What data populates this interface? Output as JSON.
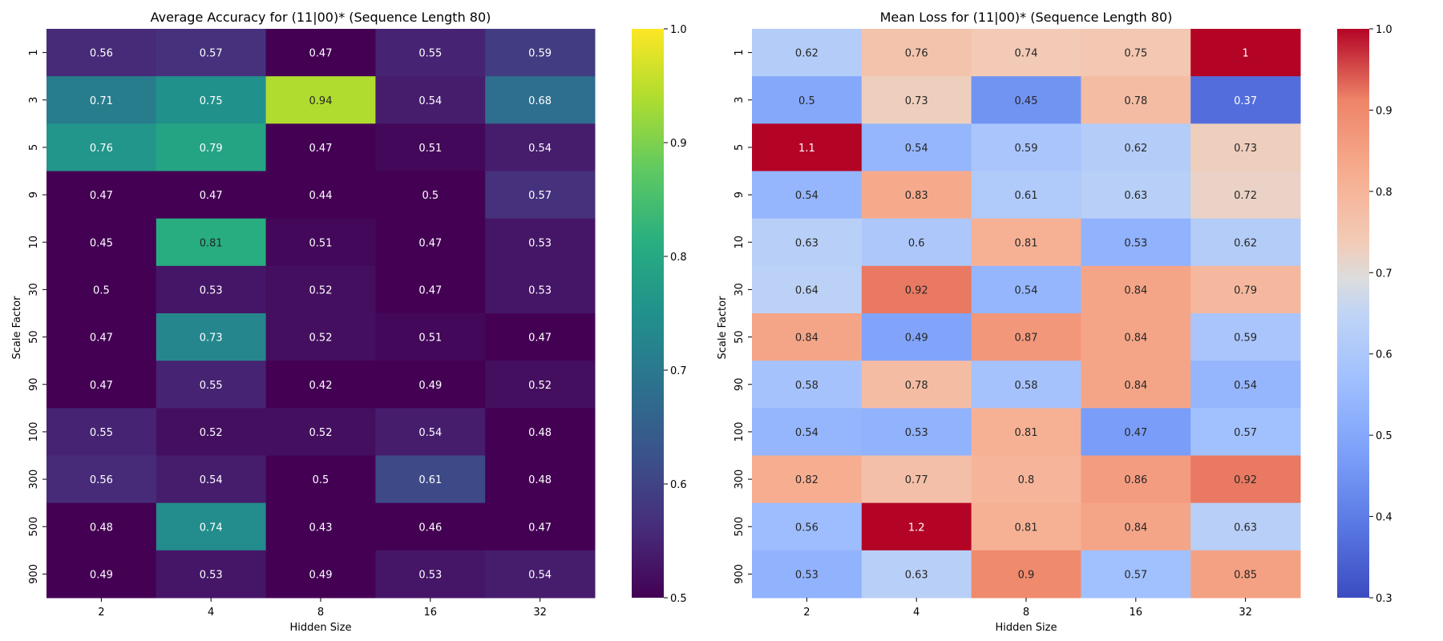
{
  "chart_data": [
    {
      "type": "heatmap",
      "title": "Average Accuracy for (11|00)* (Sequence Length 80)",
      "xlabel": "Hidden Size",
      "ylabel": "Scale Factor",
      "x_categories": [
        "2",
        "4",
        "8",
        "16",
        "32"
      ],
      "y_categories": [
        "1",
        "3",
        "5",
        "9",
        "10",
        "30",
        "50",
        "90",
        "100",
        "300",
        "500",
        "900"
      ],
      "colormap": "viridis",
      "color_range": [
        0.5,
        1.0
      ],
      "colorbar_ticks": [
        "0.5",
        "0.6",
        "0.7",
        "0.8",
        "0.9",
        "1.0"
      ],
      "values": [
        [
          0.56,
          0.57,
          0.47,
          0.55,
          0.59
        ],
        [
          0.71,
          0.75,
          0.94,
          0.54,
          0.68
        ],
        [
          0.76,
          0.79,
          0.47,
          0.51,
          0.54
        ],
        [
          0.47,
          0.47,
          0.44,
          0.5,
          0.57
        ],
        [
          0.45,
          0.81,
          0.51,
          0.47,
          0.53
        ],
        [
          0.5,
          0.53,
          0.52,
          0.47,
          0.53
        ],
        [
          0.47,
          0.73,
          0.52,
          0.51,
          0.47
        ],
        [
          0.47,
          0.55,
          0.42,
          0.49,
          0.52
        ],
        [
          0.55,
          0.52,
          0.52,
          0.54,
          0.48
        ],
        [
          0.56,
          0.54,
          0.5,
          0.61,
          0.48
        ],
        [
          0.48,
          0.74,
          0.43,
          0.46,
          0.47
        ],
        [
          0.49,
          0.53,
          0.49,
          0.53,
          0.54
        ]
      ],
      "labels": [
        [
          "0.56",
          "0.57",
          "0.47",
          "0.55",
          "0.59"
        ],
        [
          "0.71",
          "0.75",
          "0.94",
          "0.54",
          "0.68"
        ],
        [
          "0.76",
          "0.79",
          "0.47",
          "0.51",
          "0.54"
        ],
        [
          "0.47",
          "0.47",
          "0.44",
          "0.5",
          "0.57"
        ],
        [
          "0.45",
          "0.81",
          "0.51",
          "0.47",
          "0.53"
        ],
        [
          "0.5",
          "0.53",
          "0.52",
          "0.47",
          "0.53"
        ],
        [
          "0.47",
          "0.73",
          "0.52",
          "0.51",
          "0.47"
        ],
        [
          "0.47",
          "0.55",
          "0.42",
          "0.49",
          "0.52"
        ],
        [
          "0.55",
          "0.52",
          "0.52",
          "0.54",
          "0.48"
        ],
        [
          "0.56",
          "0.54",
          "0.5",
          "0.61",
          "0.48"
        ],
        [
          "0.48",
          "0.74",
          "0.43",
          "0.46",
          "0.47"
        ],
        [
          "0.49",
          "0.53",
          "0.49",
          "0.53",
          "0.54"
        ]
      ]
    },
    {
      "type": "heatmap",
      "title": "Mean Loss for (11|00)* (Sequence Length 80)",
      "xlabel": "Hidden Size",
      "ylabel": "Scale Factor",
      "x_categories": [
        "2",
        "4",
        "8",
        "16",
        "32"
      ],
      "y_categories": [
        "1",
        "3",
        "5",
        "9",
        "10",
        "30",
        "50",
        "90",
        "100",
        "300",
        "500",
        "900"
      ],
      "colormap": "coolwarm",
      "color_range": [
        0.3,
        1.0
      ],
      "colorbar_ticks": [
        "0.3",
        "0.4",
        "0.5",
        "0.6",
        "0.7",
        "0.8",
        "0.9",
        "1.0"
      ],
      "values": [
        [
          0.62,
          0.76,
          0.74,
          0.75,
          1.0
        ],
        [
          0.5,
          0.73,
          0.45,
          0.78,
          0.37
        ],
        [
          1.1,
          0.54,
          0.59,
          0.62,
          0.73
        ],
        [
          0.54,
          0.83,
          0.61,
          0.63,
          0.72
        ],
        [
          0.63,
          0.6,
          0.81,
          0.53,
          0.62
        ],
        [
          0.64,
          0.92,
          0.54,
          0.84,
          0.79
        ],
        [
          0.84,
          0.49,
          0.87,
          0.84,
          0.59
        ],
        [
          0.58,
          0.78,
          0.58,
          0.84,
          0.54
        ],
        [
          0.54,
          0.53,
          0.81,
          0.47,
          0.57
        ],
        [
          0.82,
          0.77,
          0.8,
          0.86,
          0.92
        ],
        [
          0.56,
          1.2,
          0.81,
          0.84,
          0.63
        ],
        [
          0.53,
          0.63,
          0.9,
          0.57,
          0.85
        ]
      ],
      "labels": [
        [
          "0.62",
          "0.76",
          "0.74",
          "0.75",
          "1"
        ],
        [
          "0.5",
          "0.73",
          "0.45",
          "0.78",
          "0.37"
        ],
        [
          "1.1",
          "0.54",
          "0.59",
          "0.62",
          "0.73"
        ],
        [
          "0.54",
          "0.83",
          "0.61",
          "0.63",
          "0.72"
        ],
        [
          "0.63",
          "0.6",
          "0.81",
          "0.53",
          "0.62"
        ],
        [
          "0.64",
          "0.92",
          "0.54",
          "0.84",
          "0.79"
        ],
        [
          "0.84",
          "0.49",
          "0.87",
          "0.84",
          "0.59"
        ],
        [
          "0.58",
          "0.78",
          "0.58",
          "0.84",
          "0.54"
        ],
        [
          "0.54",
          "0.53",
          "0.81",
          "0.47",
          "0.57"
        ],
        [
          "0.82",
          "0.77",
          "0.8",
          "0.86",
          "0.92"
        ],
        [
          "0.56",
          "1.2",
          "0.81",
          "0.84",
          "0.63"
        ],
        [
          "0.53",
          "0.63",
          "0.9",
          "0.57",
          "0.85"
        ]
      ]
    }
  ]
}
